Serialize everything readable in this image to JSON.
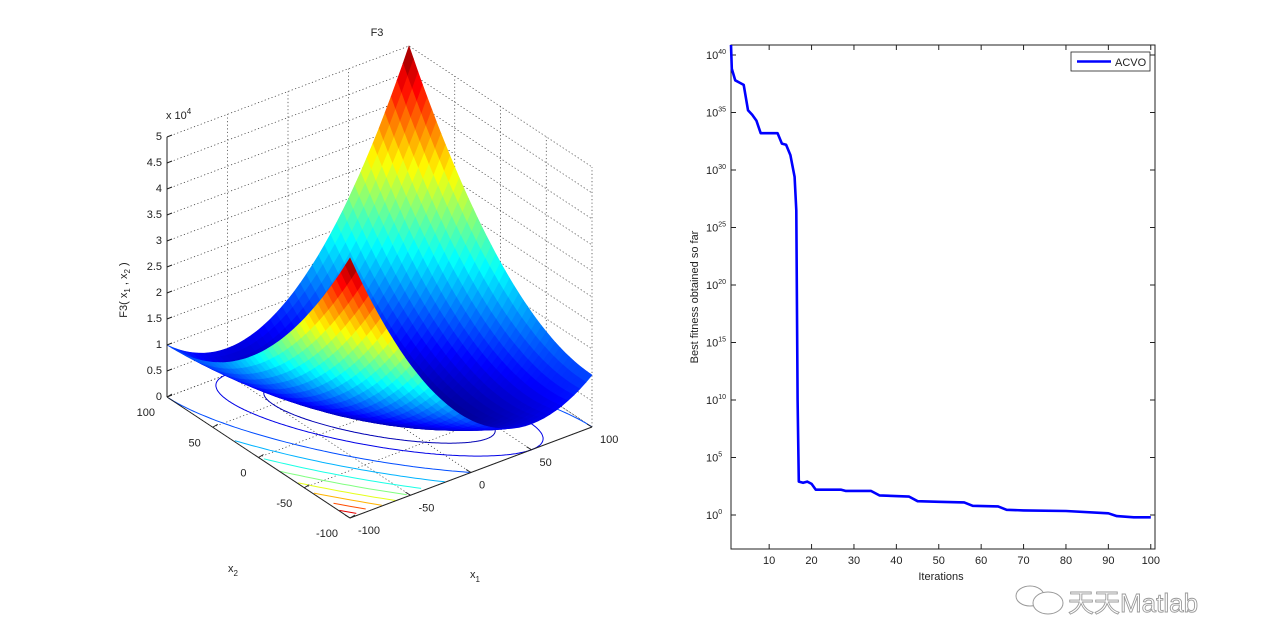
{
  "chart_data": [
    {
      "type": "surface",
      "title": "F3",
      "xlabel": {
        "base": "x",
        "sub": "1"
      },
      "ylabel": {
        "base": "x",
        "sub": "2"
      },
      "zlabel": {
        "p1": "F3( x",
        "s1": "1",
        "p2": " , x",
        "s2": "2",
        "p3": " )"
      },
      "z_multiplier": {
        "base": "x 10",
        "exp": "4"
      },
      "coefficients": {
        "x1_squared": 1,
        "x1_plus_x2_squared": 1
      },
      "xlim": [
        -100,
        100
      ],
      "ylim": [
        -100,
        100
      ],
      "zlim": [
        0,
        50000
      ],
      "xticks": [
        -100,
        -50,
        0,
        50,
        100
      ],
      "yticks": [
        -100,
        -50,
        0,
        50,
        100
      ],
      "zticks": [
        "0",
        "0.5",
        "1",
        "1.5",
        "2",
        "2.5",
        "3",
        "3.5",
        "4",
        "4.5",
        "5"
      ],
      "contour_levels": [
        2500,
        5000,
        10000,
        15000,
        20000,
        25000,
        30000,
        35000,
        40000,
        45000
      ],
      "colormap": "jet"
    },
    {
      "type": "line",
      "title": "",
      "xlabel": "Iterations",
      "ylabel": "Best fitness obtained so far",
      "yscale": "log",
      "xlim": [
        1,
        100
      ],
      "ylim_log10": [
        -3,
        41
      ],
      "xticks": [
        "10",
        "20",
        "30",
        "40",
        "50",
        "60",
        "70",
        "80",
        "90",
        "100"
      ],
      "yticks_exp": [
        "0",
        "5",
        "10",
        "15",
        "20",
        "25",
        "30",
        "35",
        "40"
      ],
      "ytick_base": "10",
      "legend": {
        "label": "ACVO",
        "position": "top-right"
      },
      "series": [
        {
          "name": "ACVO",
          "color": "#0000ff",
          "x": [
            1,
            1.2,
            2,
            3,
            4,
            5,
            6,
            7,
            8,
            12,
            13,
            14,
            15,
            16,
            16.4,
            16.7,
            17,
            18,
            19,
            20,
            21,
            27,
            28,
            34,
            36,
            43,
            45,
            50,
            56,
            58,
            64,
            66,
            70,
            80,
            90,
            92,
            96,
            100
          ],
          "log10_y": [
            41,
            38.8,
            37.8,
            37.6,
            37.4,
            35.2,
            34.8,
            34.3,
            33.2,
            33.2,
            32.3,
            32.2,
            31.3,
            29.4,
            26.5,
            10,
            2.9,
            2.8,
            2.9,
            2.7,
            2.2,
            2.2,
            2.1,
            2.1,
            1.7,
            1.6,
            1.2,
            1.15,
            1.1,
            0.8,
            0.75,
            0.45,
            0.4,
            0.35,
            0.15,
            -0.1,
            -0.2,
            -0.2
          ]
        }
      ]
    }
  ],
  "watermark": "天天Matlab"
}
